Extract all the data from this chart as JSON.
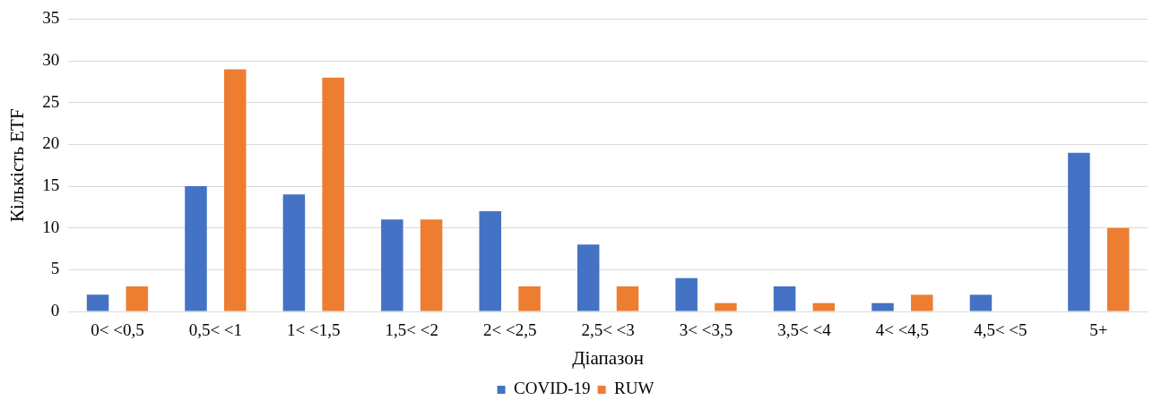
{
  "chart_data": {
    "type": "bar",
    "xlabel": "Діапазон",
    "ylabel": "Кількість ETF",
    "categories": [
      "0< <0,5",
      "0,5< <1",
      "1< <1,5",
      "1,5< <2",
      "2< <2,5",
      "2,5< <3",
      "3< <3,5",
      "3,5< <4",
      "4< <4,5",
      "4,5< <5",
      "5+"
    ],
    "series": [
      {
        "name": "COVID-19",
        "color": "#4472c4",
        "values": [
          2,
          15,
          14,
          11,
          12,
          8,
          4,
          3,
          1,
          2,
          19
        ]
      },
      {
        "name": "RUW",
        "color": "#ed7d31",
        "values": [
          3,
          29,
          28,
          11,
          3,
          3,
          1,
          1,
          2,
          0,
          10
        ]
      }
    ],
    "ylim": [
      0,
      35
    ],
    "yticks": [
      0,
      5,
      10,
      15,
      20,
      25,
      30,
      35
    ],
    "grid": "y",
    "legend": "bottom"
  }
}
